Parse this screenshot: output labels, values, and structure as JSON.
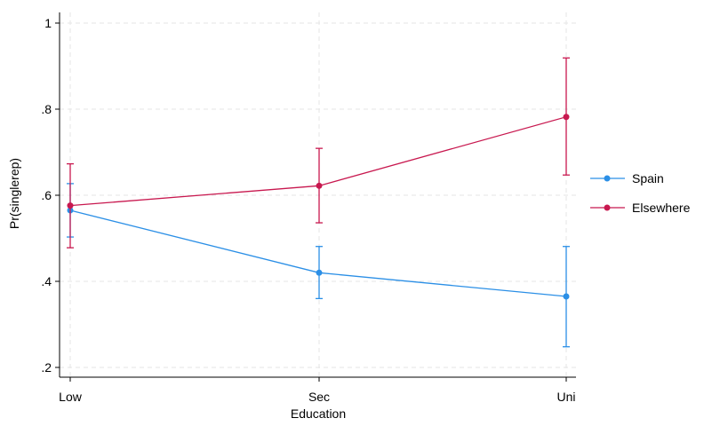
{
  "chart_data": {
    "type": "line",
    "xlabel": "Education",
    "ylabel": "Pr(singlerep)",
    "categories": [
      "Low",
      "Sec",
      "Uni"
    ],
    "ylim": [
      0.2,
      1.0
    ],
    "yticks": [
      0.2,
      0.4,
      0.6,
      0.8,
      1.0
    ],
    "ytick_labels": [
      ".2",
      ".4",
      ".6",
      ".8",
      "1"
    ],
    "grid": true,
    "legend_position": "right",
    "series": [
      {
        "name": "Spain",
        "color": "#2b8fe6",
        "values": [
          0.565,
          0.42,
          0.365
        ],
        "ci_low": [
          0.503,
          0.36,
          0.248
        ],
        "ci_high": [
          0.627,
          0.481,
          0.481
        ]
      },
      {
        "name": "Elsewhere",
        "color": "#c8184f",
        "values": [
          0.576,
          0.622,
          0.782
        ],
        "ci_low": [
          0.478,
          0.536,
          0.647
        ],
        "ci_high": [
          0.673,
          0.709,
          0.919
        ]
      }
    ]
  }
}
